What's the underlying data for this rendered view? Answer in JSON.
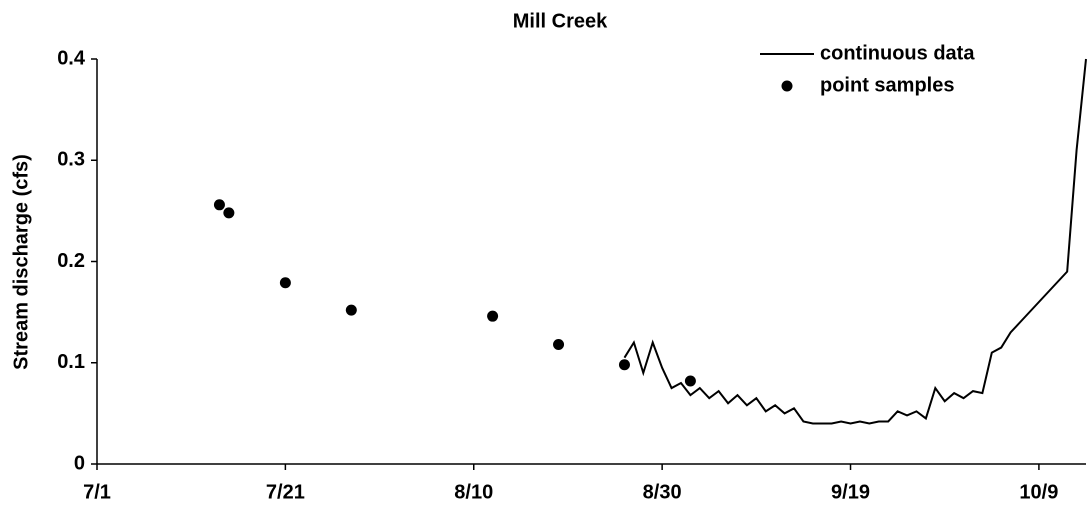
{
  "chart_data": {
    "type": "line",
    "title": "Mill Creek",
    "y_label": "Stream discharge (cfs)",
    "legend": "upper right",
    "xlim": [
      "7/1",
      "10/14"
    ],
    "xticks": [
      "7/1",
      "7/21",
      "8/10",
      "8/30",
      "9/19",
      "10/9"
    ],
    "ylim": [
      0,
      0.4
    ],
    "yticks": [
      0,
      0.1,
      0.2,
      0.3,
      0.4
    ],
    "series": [
      {
        "name": "continuous data",
        "type": "line",
        "color": "#000000",
        "x": [
          "8/26",
          "8/27",
          "8/28",
          "8/29",
          "8/30",
          "8/31",
          "9/1",
          "9/2",
          "9/3",
          "9/4",
          "9/5",
          "9/6",
          "9/7",
          "9/8",
          "9/9",
          "9/10",
          "9/11",
          "9/12",
          "9/13",
          "9/14",
          "9/15",
          "9/16",
          "9/17",
          "9/18",
          "9/19",
          "9/20",
          "9/21",
          "9/22",
          "9/23",
          "9/24",
          "9/25",
          "9/26",
          "9/27",
          "9/28",
          "9/29",
          "9/30",
          "10/1",
          "10/2",
          "10/3",
          "10/4",
          "10/5",
          "10/6",
          "10/7",
          "10/8",
          "10/9",
          "10/10",
          "10/11",
          "10/12",
          "10/13",
          "10/14"
        ],
        "values": [
          0.105,
          0.12,
          0.09,
          0.12,
          0.095,
          0.075,
          0.08,
          0.068,
          0.075,
          0.065,
          0.072,
          0.06,
          0.068,
          0.058,
          0.065,
          0.052,
          0.058,
          0.05,
          0.055,
          0.042,
          0.04,
          0.04,
          0.04,
          0.042,
          0.04,
          0.042,
          0.04,
          0.042,
          0.042,
          0.052,
          0.048,
          0.052,
          0.045,
          0.075,
          0.062,
          0.07,
          0.065,
          0.072,
          0.07,
          0.11,
          0.115,
          0.13,
          0.14,
          0.15,
          0.16,
          0.17,
          0.18,
          0.19,
          0.31,
          0.4
        ]
      },
      {
        "name": "point samples",
        "type": "scatter",
        "color": "#000000",
        "x": [
          "7/14",
          "7/15",
          "7/21",
          "7/28",
          "8/12",
          "8/19",
          "8/26",
          "9/2"
        ],
        "values": [
          0.256,
          0.248,
          0.179,
          0.152,
          0.146,
          0.118,
          0.098,
          0.082
        ]
      }
    ]
  }
}
